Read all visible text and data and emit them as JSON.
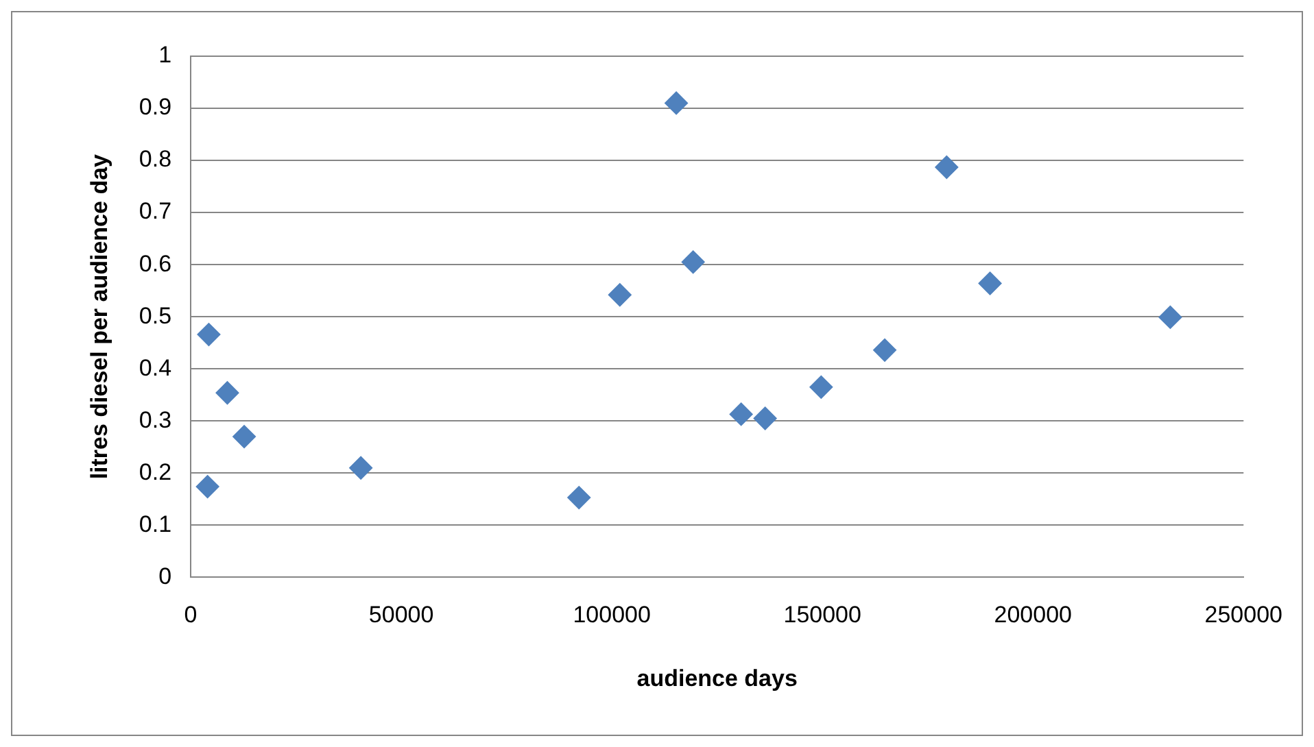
{
  "chart_data": {
    "type": "scatter",
    "xlabel": "audience days",
    "ylabel": "litres diesel per audience day",
    "x": [
      4000,
      4300,
      8700,
      12700,
      40400,
      92200,
      101900,
      115300,
      119300,
      130700,
      136400,
      149700,
      164800,
      179500,
      189800,
      232600
    ],
    "series": [
      {
        "color": "#4f81bd",
        "values": [
          0.174,
          0.466,
          0.354,
          0.27,
          0.21,
          0.153,
          0.542,
          0.91,
          0.605,
          0.313,
          0.305,
          0.365,
          0.436,
          0.787,
          0.564,
          0.499
        ]
      }
    ],
    "xlim": [
      0,
      250000
    ],
    "xticks": [
      0,
      50000,
      100000,
      150000,
      200000,
      250000
    ],
    "ylim": [
      0,
      1
    ],
    "yticks": [
      0,
      0.1,
      0.2,
      0.3,
      0.4,
      0.5,
      0.6,
      0.7,
      0.8,
      0.9,
      1
    ],
    "grid": "y",
    "legend": false,
    "marker": "diamond"
  }
}
